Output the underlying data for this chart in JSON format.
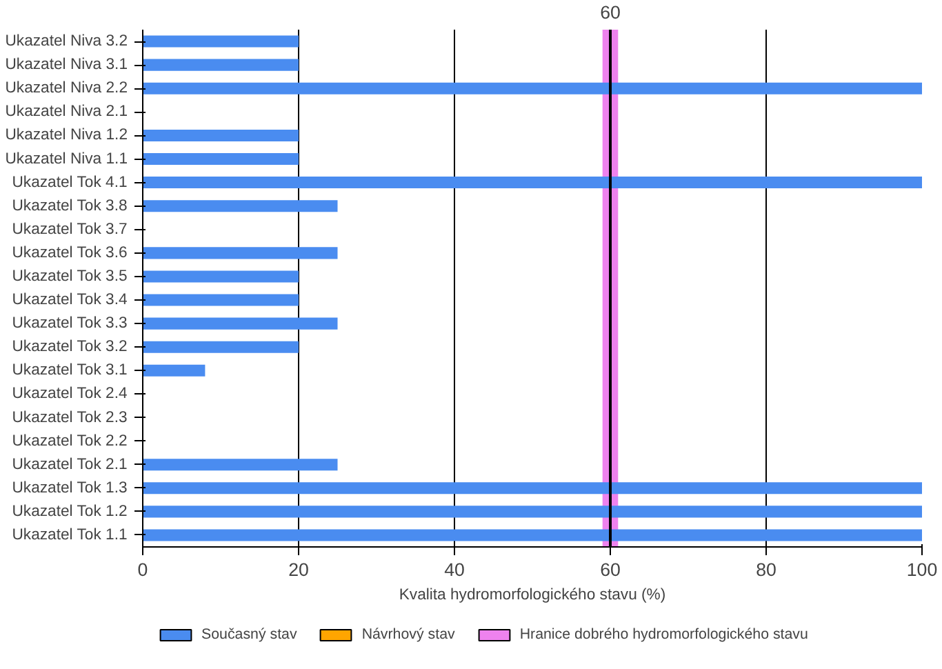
{
  "chart_data": {
    "type": "bar",
    "orientation": "horizontal",
    "xlabel": "Kvalita hydromorfologického stavu (%)",
    "categories": [
      "Ukazatel Niva 3.2",
      "Ukazatel Niva 3.1",
      "Ukazatel Niva 2.2",
      "Ukazatel Niva 2.1",
      "Ukazatel Niva 1.2",
      "Ukazatel Niva 1.1",
      "Ukazatel Tok 4.1",
      "Ukazatel Tok 3.8",
      "Ukazatel Tok 3.7",
      "Ukazatel Tok 3.6",
      "Ukazatel Tok 3.5",
      "Ukazatel Tok 3.4",
      "Ukazatel Tok 3.3",
      "Ukazatel Tok 3.2",
      "Ukazatel Tok 3.1",
      "Ukazatel Tok 2.4",
      "Ukazatel Tok 2.3",
      "Ukazatel Tok 2.2",
      "Ukazatel Tok 2.1",
      "Ukazatel Tok 1.3",
      "Ukazatel Tok 1.2",
      "Ukazatel Tok 1.1"
    ],
    "series": [
      {
        "name": "Současný stav",
        "color": "#4a8cf0",
        "values": [
          20,
          20,
          100,
          null,
          20,
          20,
          100,
          25,
          null,
          25,
          20,
          20,
          25,
          20,
          8,
          null,
          null,
          null,
          25,
          100,
          100,
          100
        ]
      },
      {
        "name": "Návrhový stav",
        "color": "#ffa500",
        "values": [
          null,
          null,
          null,
          null,
          null,
          null,
          null,
          null,
          null,
          null,
          null,
          null,
          null,
          null,
          null,
          null,
          null,
          null,
          null,
          null,
          null,
          null
        ]
      }
    ],
    "xlim": [
      0,
      100
    ],
    "xticks": [
      0,
      20,
      40,
      60,
      80,
      100
    ],
    "grid": "x",
    "legend": "bottom",
    "bands": [
      {
        "axis": "x",
        "from": 59,
        "to": 61,
        "color": "#ee82ee",
        "label": "Hranice dobrého hydromorfologického stavu"
      }
    ],
    "ref_lines": [
      {
        "axis": "x",
        "value": 60,
        "label": "60",
        "color": "#000000"
      }
    ]
  }
}
